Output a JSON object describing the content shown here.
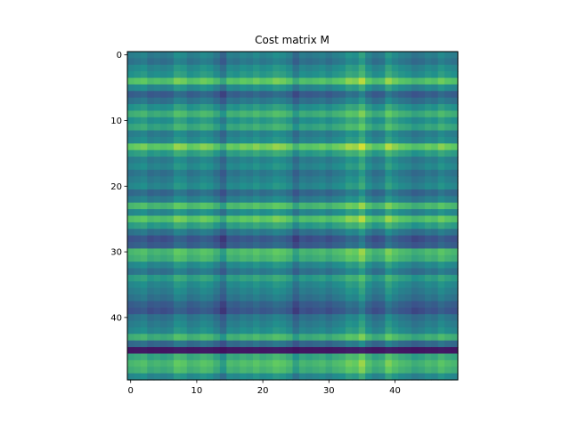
{
  "chart_data": {
    "type": "heatmap",
    "title": "Cost matrix M",
    "xlabel": "",
    "ylabel": "",
    "n_rows": 50,
    "n_cols": 50,
    "colormap": "viridis",
    "value_range": [
      0,
      1
    ],
    "x_ticks": [
      0,
      10,
      20,
      30,
      40
    ],
    "y_ticks": [
      0,
      10,
      20,
      30,
      40
    ],
    "x_tick_labels": [
      "0",
      "10",
      "20",
      "30",
      "40"
    ],
    "y_tick_labels": [
      "0",
      "10",
      "20",
      "30",
      "40"
    ],
    "y_origin": "top",
    "grid": false,
    "legend": "none",
    "row_levels": [
      0.5,
      0.45,
      0.55,
      0.6,
      0.85,
      0.55,
      0.35,
      0.45,
      0.6,
      0.75,
      0.6,
      0.7,
      0.5,
      0.55,
      0.9,
      0.65,
      0.5,
      0.55,
      0.45,
      0.5,
      0.55,
      0.4,
      0.5,
      0.8,
      0.55,
      0.85,
      0.65,
      0.45,
      0.3,
      0.35,
      0.8,
      0.75,
      0.55,
      0.45,
      0.65,
      0.55,
      0.5,
      0.45,
      0.35,
      0.3,
      0.45,
      0.5,
      0.55,
      0.75,
      0.4,
      0.05,
      0.7,
      0.8,
      0.75,
      0.55
    ],
    "col_levels": [
      0.5,
      0.55,
      0.6,
      0.45,
      0.5,
      0.45,
      0.5,
      0.7,
      0.65,
      0.5,
      0.55,
      0.65,
      0.6,
      0.45,
      0.25,
      0.55,
      0.5,
      0.6,
      0.55,
      0.65,
      0.55,
      0.6,
      0.7,
      0.65,
      0.55,
      0.3,
      0.5,
      0.45,
      0.5,
      0.55,
      0.45,
      0.55,
      0.6,
      0.75,
      0.7,
      0.9,
      0.6,
      0.45,
      0.5,
      0.8,
      0.65,
      0.55,
      0.5,
      0.4,
      0.45,
      0.55,
      0.5,
      0.65,
      0.55,
      0.5
    ]
  }
}
